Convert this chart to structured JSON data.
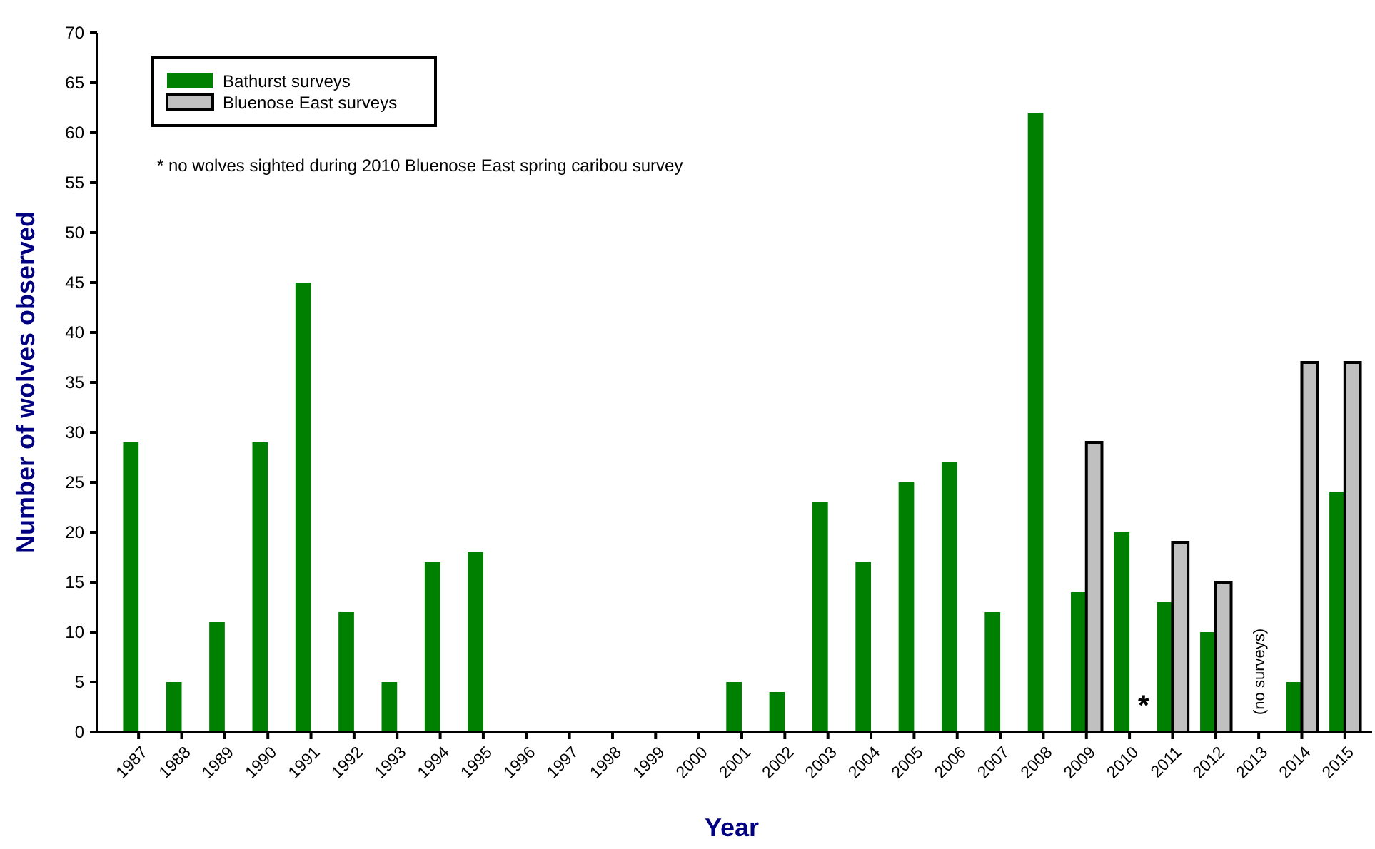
{
  "chart_data": {
    "type": "bar",
    "xlabel": "Year",
    "ylabel": "Number of wolves observed",
    "categories": [
      "1987",
      "1988",
      "1989",
      "1990",
      "1991",
      "1992",
      "1993",
      "1994",
      "1995",
      "1996",
      "1997",
      "1998",
      "1999",
      "2000",
      "2001",
      "2002",
      "2003",
      "2004",
      "2005",
      "2006",
      "2007",
      "2008",
      "2009",
      "2010",
      "2011",
      "2012",
      "2013",
      "2014",
      "2015"
    ],
    "series": [
      {
        "name": "Bathurst surveys",
        "color": "#008000",
        "values": [
          29,
          5,
          11,
          29,
          45,
          12,
          5,
          17,
          18,
          null,
          null,
          null,
          null,
          null,
          5,
          4,
          23,
          17,
          25,
          27,
          12,
          62,
          14,
          20,
          13,
          10,
          null,
          5,
          24
        ]
      },
      {
        "name": "Bluenose East surveys",
        "color": "#c0c0c0",
        "values": [
          null,
          null,
          null,
          null,
          null,
          null,
          null,
          null,
          null,
          null,
          null,
          null,
          null,
          null,
          null,
          null,
          null,
          null,
          null,
          null,
          null,
          null,
          29,
          0,
          19,
          15,
          null,
          37,
          37
        ]
      }
    ],
    "ylim": [
      0,
      70
    ],
    "yticks": [
      0,
      5,
      10,
      15,
      20,
      25,
      30,
      35,
      40,
      45,
      50,
      55,
      60,
      65,
      70
    ],
    "grid": false,
    "legend": "top left",
    "annotations": [
      "* no wolves sighted during 2010 Bluenose East spring caribou survey",
      {
        "text": "*",
        "x": "2010",
        "y": 0
      },
      "(no surveys)"
    ]
  }
}
